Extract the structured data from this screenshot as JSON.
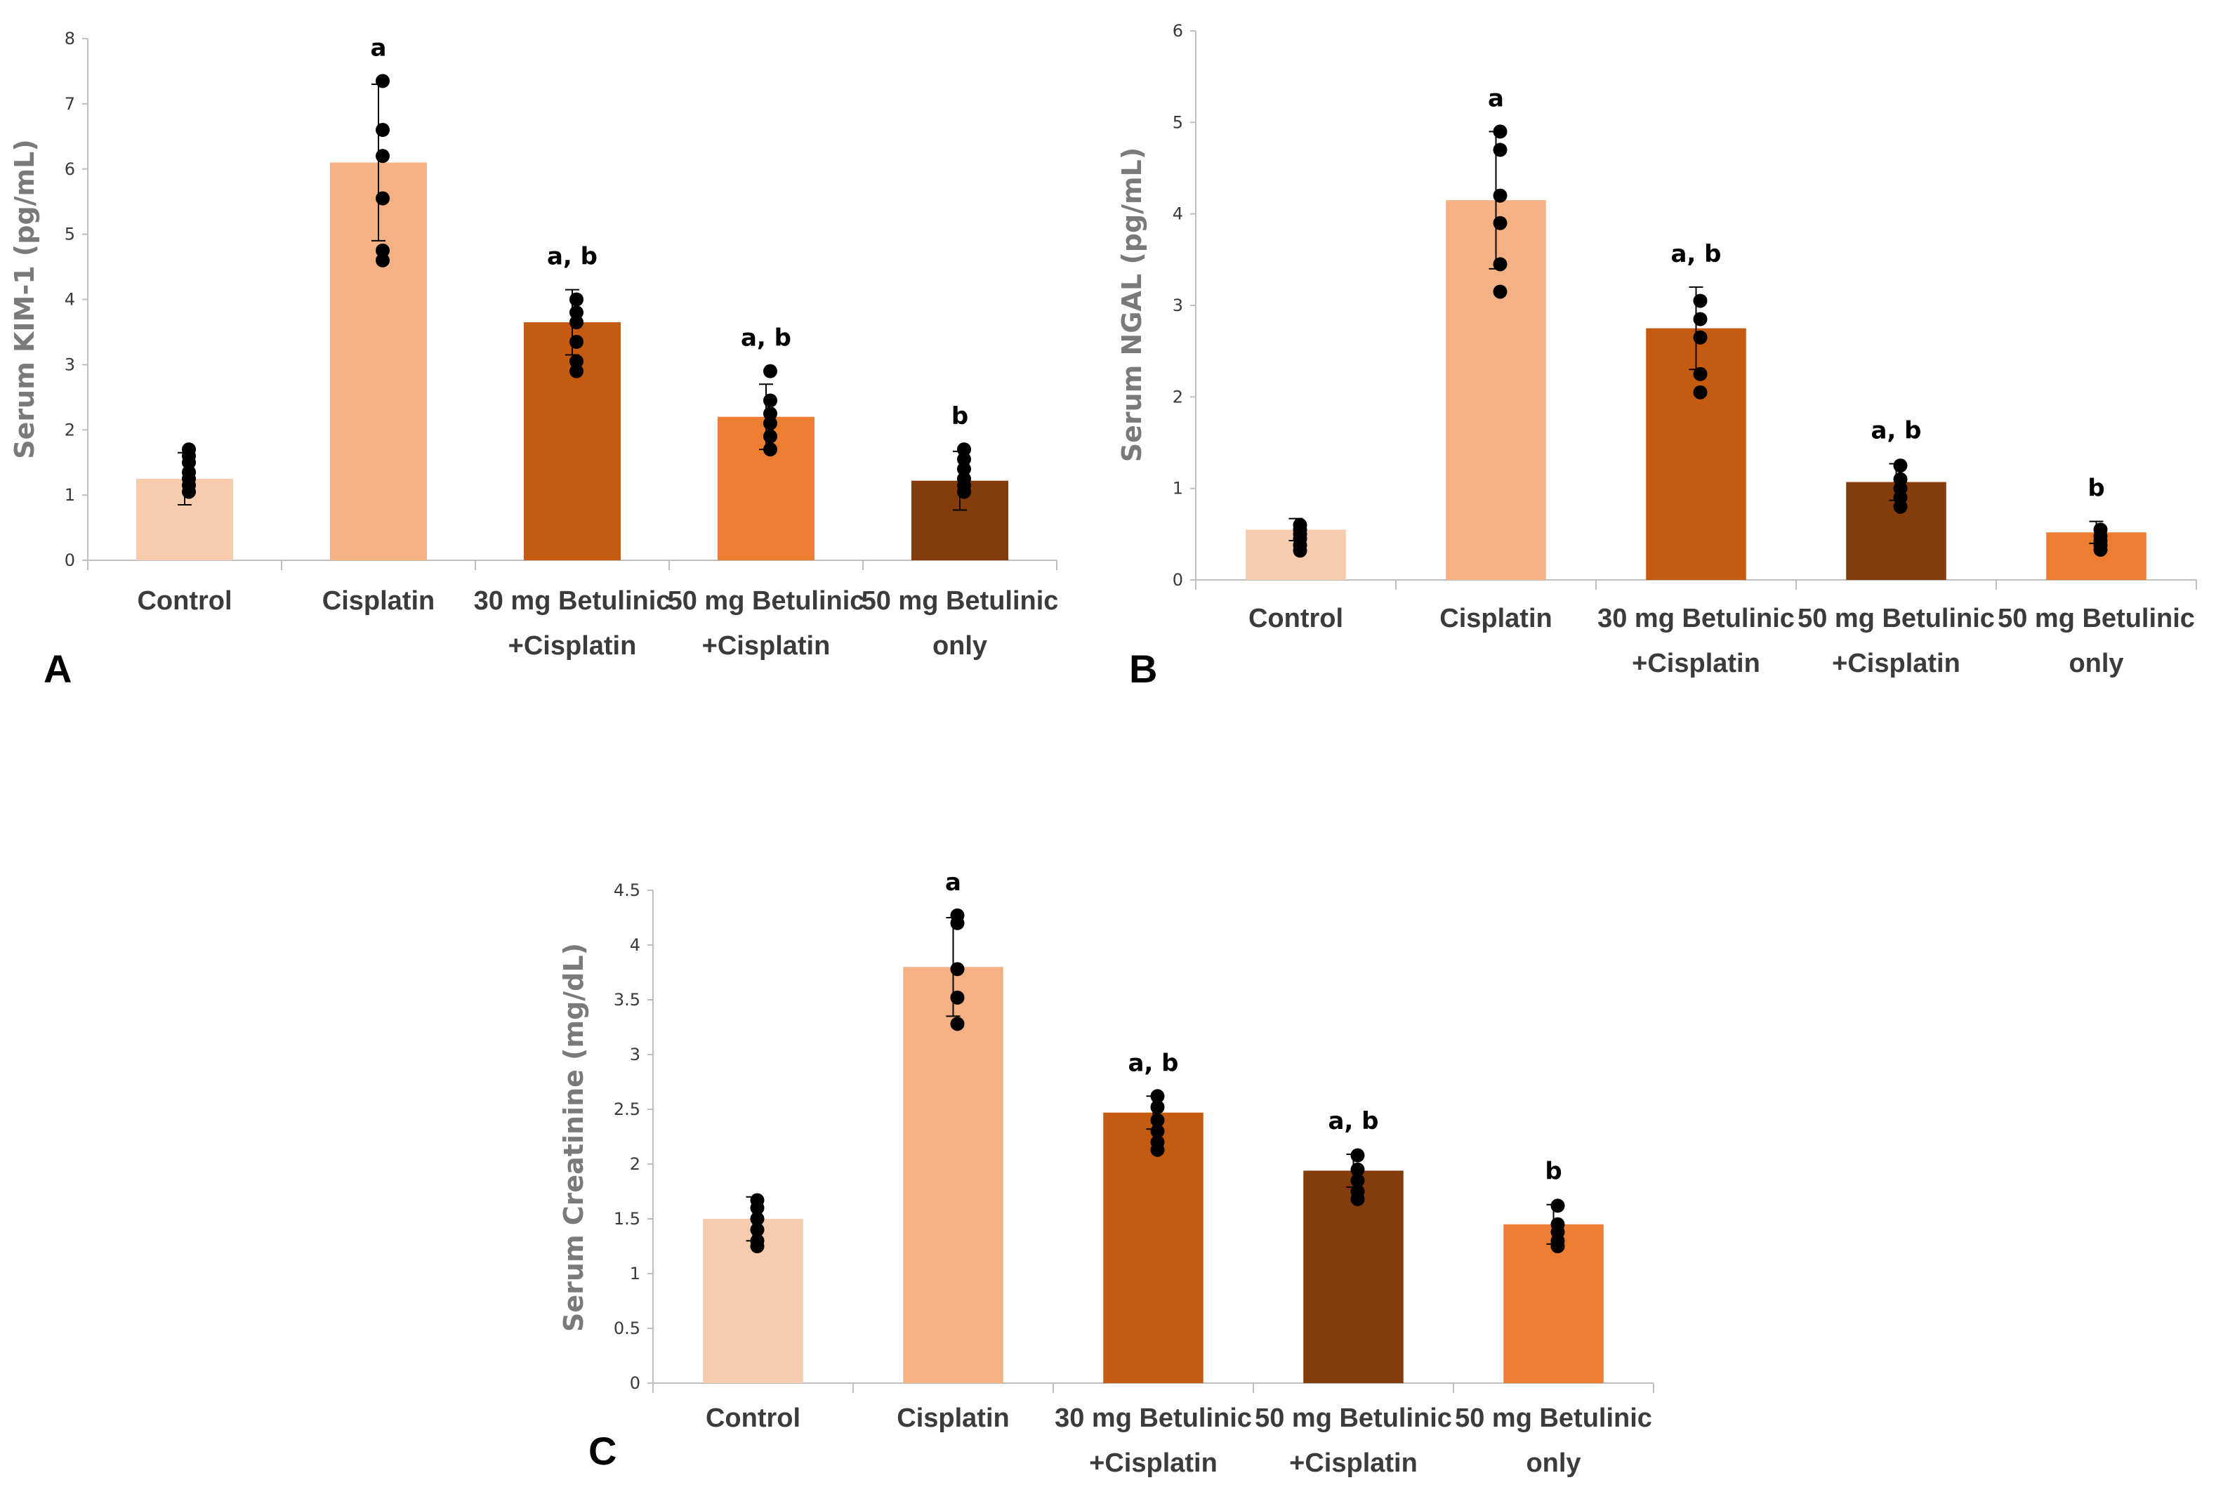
{
  "chart_data": [
    {
      "type": "bar",
      "panel_label": "A",
      "ylabel": "Serum KIM-1 (pg/mL)",
      "ylim": [
        0,
        8
      ],
      "yticks": [
        "0",
        "1",
        "2",
        "3",
        "4",
        "5",
        "6",
        "7",
        "8"
      ],
      "categories": [
        [
          "Control"
        ],
        [
          "Cisplatin"
        ],
        [
          "30 mg Betulinic",
          "+Cisplatin"
        ],
        [
          "50 mg Betulinic",
          "+Cisplatin"
        ],
        [
          "50 mg Betulinic",
          "only"
        ]
      ],
      "values": [
        1.25,
        6.1,
        3.65,
        2.2,
        1.22
      ],
      "errors": [
        0.4,
        1.2,
        0.5,
        0.5,
        0.45
      ],
      "colors": [
        "#F7CBAD",
        "#F4B183",
        "#C55A11",
        "#ED7D31",
        "#843C0C"
      ],
      "points": [
        [
          1.05,
          1.15,
          1.25,
          1.35,
          1.5,
          1.6,
          1.7
        ],
        [
          4.6,
          4.75,
          5.55,
          6.2,
          6.6,
          7.35
        ],
        [
          2.9,
          3.05,
          3.35,
          3.65,
          3.8,
          4.0
        ],
        [
          1.7,
          1.9,
          2.1,
          2.25,
          2.45,
          2.9
        ],
        [
          1.05,
          1.15,
          1.25,
          1.4,
          1.55,
          1.7
        ]
      ],
      "significance": [
        "",
        "a",
        "a, b",
        "a, b",
        "b"
      ]
    },
    {
      "type": "bar",
      "panel_label": "B",
      "ylabel": "Serum NGAL (pg/mL)",
      "ylim": [
        0,
        6
      ],
      "yticks": [
        "0",
        "1",
        "2",
        "3",
        "4",
        "5",
        "6"
      ],
      "categories": [
        [
          "Control"
        ],
        [
          "Cisplatin"
        ],
        [
          "30 mg Betulinic",
          "+Cisplatin"
        ],
        [
          "50 mg Betulinic",
          "+Cisplatin"
        ],
        [
          "50 mg Betulinic",
          "only"
        ]
      ],
      "values": [
        0.55,
        4.15,
        2.75,
        1.07,
        0.52
      ],
      "errors": [
        0.12,
        0.75,
        0.45,
        0.2,
        0.12
      ],
      "colors": [
        "#F7CBAD",
        "#F4B183",
        "#C55A11",
        "#843C0C",
        "#ED7D31"
      ],
      "points": [
        [
          0.32,
          0.38,
          0.45,
          0.5,
          0.55,
          0.6
        ],
        [
          3.15,
          3.45,
          3.9,
          4.2,
          4.7,
          4.9
        ],
        [
          2.05,
          2.25,
          2.65,
          2.85,
          3.05
        ],
        [
          0.8,
          0.9,
          1.0,
          1.1,
          1.25
        ],
        [
          0.33,
          0.38,
          0.43,
          0.48,
          0.55
        ]
      ],
      "significance": [
        "",
        "a",
        "a, b",
        "a, b",
        "b"
      ]
    },
    {
      "type": "bar",
      "panel_label": "C",
      "ylabel": "Serum Creatinine (mg/dL)",
      "ylim": [
        0,
        4.5
      ],
      "yticks": [
        "0",
        "0.5",
        "1",
        "1.5",
        "2",
        "2.5",
        "3",
        "3.5",
        "4",
        "4.5"
      ],
      "categories": [
        [
          "Control"
        ],
        [
          "Cisplatin"
        ],
        [
          "30 mg Betulinic",
          "+Cisplatin"
        ],
        [
          "50 mg Betulinic",
          "+Cisplatin"
        ],
        [
          "50 mg Betulinic",
          "only"
        ]
      ],
      "values": [
        1.5,
        3.8,
        2.47,
        1.94,
        1.45
      ],
      "errors": [
        0.2,
        0.45,
        0.15,
        0.15,
        0.18
      ],
      "colors": [
        "#F7CBAD",
        "#F4B183",
        "#C55A11",
        "#843C0C",
        "#ED7D31"
      ],
      "points": [
        [
          1.25,
          1.3,
          1.4,
          1.5,
          1.6,
          1.67
        ],
        [
          3.28,
          3.52,
          3.78,
          4.2,
          4.27
        ],
        [
          2.13,
          2.2,
          2.3,
          2.4,
          2.52,
          2.62
        ],
        [
          1.68,
          1.75,
          1.85,
          1.95,
          2.08
        ],
        [
          1.25,
          1.3,
          1.38,
          1.45,
          1.62
        ]
      ],
      "significance": [
        "",
        "a",
        "a, b",
        "a, b",
        "b"
      ]
    }
  ]
}
